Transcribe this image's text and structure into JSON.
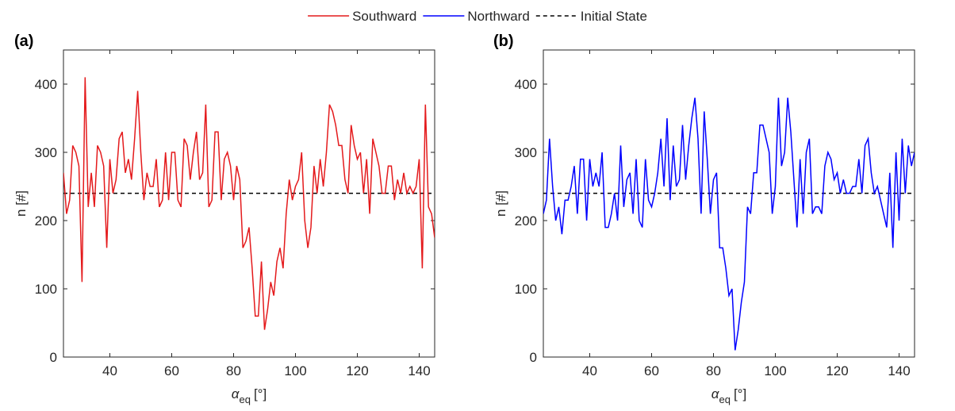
{
  "chart_data": [
    {
      "type": "line",
      "panel_label": "(a)",
      "xlabel": {
        "symbol": "α",
        "subscript": "eq",
        "unit": "[°]"
      },
      "ylabel": "n [#]",
      "xlim": [
        25,
        145
      ],
      "xticks": [
        40,
        60,
        80,
        100,
        120,
        140
      ],
      "ylim": [
        0,
        450
      ],
      "yticks": [
        0,
        100,
        200,
        300,
        400
      ],
      "x": [
        25,
        26,
        27,
        28,
        29,
        30,
        31,
        32,
        33,
        34,
        35,
        36,
        37,
        38,
        39,
        40,
        41,
        42,
        43,
        44,
        45,
        46,
        47,
        48,
        49,
        50,
        51,
        52,
        53,
        54,
        55,
        56,
        57,
        58,
        59,
        60,
        61,
        62,
        63,
        64,
        65,
        66,
        67,
        68,
        69,
        70,
        71,
        72,
        73,
        74,
        75,
        76,
        77,
        78,
        79,
        80,
        81,
        82,
        83,
        84,
        85,
        86,
        87,
        88,
        89,
        90,
        91,
        92,
        93,
        94,
        95,
        96,
        97,
        98,
        99,
        100,
        101,
        102,
        103,
        104,
        105,
        106,
        107,
        108,
        109,
        110,
        111,
        112,
        113,
        114,
        115,
        116,
        117,
        118,
        119,
        120,
        121,
        122,
        123,
        124,
        125,
        126,
        127,
        128,
        129,
        130,
        131,
        132,
        133,
        134,
        135,
        136,
        137,
        138,
        139,
        140,
        141,
        142,
        143,
        144,
        145
      ],
      "series": [
        {
          "name": "Southward",
          "color": "#e41a1c",
          "values": [
            270,
            210,
            230,
            310,
            300,
            280,
            110,
            410,
            220,
            270,
            220,
            310,
            300,
            280,
            160,
            290,
            240,
            260,
            320,
            330,
            270,
            290,
            260,
            320,
            390,
            300,
            230,
            270,
            250,
            250,
            290,
            220,
            230,
            300,
            230,
            300,
            300,
            230,
            220,
            320,
            310,
            260,
            300,
            330,
            260,
            270,
            370,
            220,
            230,
            330,
            330,
            230,
            290,
            300,
            280,
            230,
            280,
            260,
            160,
            170,
            190,
            130,
            60,
            60,
            140,
            40,
            70,
            110,
            90,
            140,
            160,
            130,
            210,
            260,
            230,
            250,
            260,
            300,
            200,
            160,
            190,
            280,
            240,
            290,
            250,
            300,
            370,
            360,
            340,
            310,
            310,
            260,
            240,
            340,
            310,
            290,
            300,
            240,
            290,
            210,
            320,
            300,
            280,
            240,
            240,
            280,
            280,
            230,
            260,
            240,
            270,
            240,
            250,
            240,
            250,
            290,
            130,
            370,
            220,
            210,
            175
          ]
        }
      ],
      "reference_line": {
        "name": "Initial State",
        "value": 240,
        "color": "#000000"
      }
    },
    {
      "type": "line",
      "panel_label": "(b)",
      "xlabel": {
        "symbol": "α",
        "subscript": "eq",
        "unit": "[°]"
      },
      "ylabel": "n [#]",
      "xlim": [
        25,
        145
      ],
      "xticks": [
        40,
        60,
        80,
        100,
        120,
        140
      ],
      "ylim": [
        0,
        450
      ],
      "yticks": [
        0,
        100,
        200,
        300,
        400
      ],
      "x": [
        25,
        26,
        27,
        28,
        29,
        30,
        31,
        32,
        33,
        34,
        35,
        36,
        37,
        38,
        39,
        40,
        41,
        42,
        43,
        44,
        45,
        46,
        47,
        48,
        49,
        50,
        51,
        52,
        53,
        54,
        55,
        56,
        57,
        58,
        59,
        60,
        61,
        62,
        63,
        64,
        65,
        66,
        67,
        68,
        69,
        70,
        71,
        72,
        73,
        74,
        75,
        76,
        77,
        78,
        79,
        80,
        81,
        82,
        83,
        84,
        85,
        86,
        87,
        88,
        89,
        90,
        91,
        92,
        93,
        94,
        95,
        96,
        97,
        98,
        99,
        100,
        101,
        102,
        103,
        104,
        105,
        106,
        107,
        108,
        109,
        110,
        111,
        112,
        113,
        114,
        115,
        116,
        117,
        118,
        119,
        120,
        121,
        122,
        123,
        124,
        125,
        126,
        127,
        128,
        129,
        130,
        131,
        132,
        133,
        134,
        135,
        136,
        137,
        138,
        139,
        140,
        141,
        142,
        143,
        144,
        145
      ],
      "series": [
        {
          "name": "Northward",
          "color": "#0000ff",
          "values": [
            210,
            230,
            320,
            250,
            200,
            220,
            180,
            230,
            230,
            250,
            280,
            210,
            290,
            290,
            200,
            290,
            250,
            270,
            250,
            300,
            190,
            190,
            210,
            240,
            200,
            310,
            220,
            260,
            270,
            210,
            290,
            200,
            190,
            290,
            230,
            220,
            240,
            270,
            320,
            250,
            350,
            230,
            310,
            250,
            260,
            340,
            260,
            310,
            350,
            380,
            320,
            210,
            360,
            290,
            210,
            260,
            270,
            160,
            160,
            130,
            90,
            100,
            10,
            40,
            80,
            110,
            220,
            210,
            270,
            270,
            340,
            340,
            320,
            300,
            210,
            250,
            380,
            280,
            300,
            380,
            330,
            260,
            190,
            290,
            210,
            300,
            320,
            210,
            220,
            220,
            210,
            280,
            300,
            290,
            260,
            270,
            240,
            260,
            240,
            240,
            250,
            250,
            290,
            240,
            310,
            320,
            270,
            240,
            250,
            230,
            210,
            190,
            270,
            160,
            300,
            200,
            320,
            240,
            310,
            280,
            300
          ]
        }
      ],
      "reference_line": {
        "value": 240,
        "color": "#000000"
      }
    }
  ]
}
